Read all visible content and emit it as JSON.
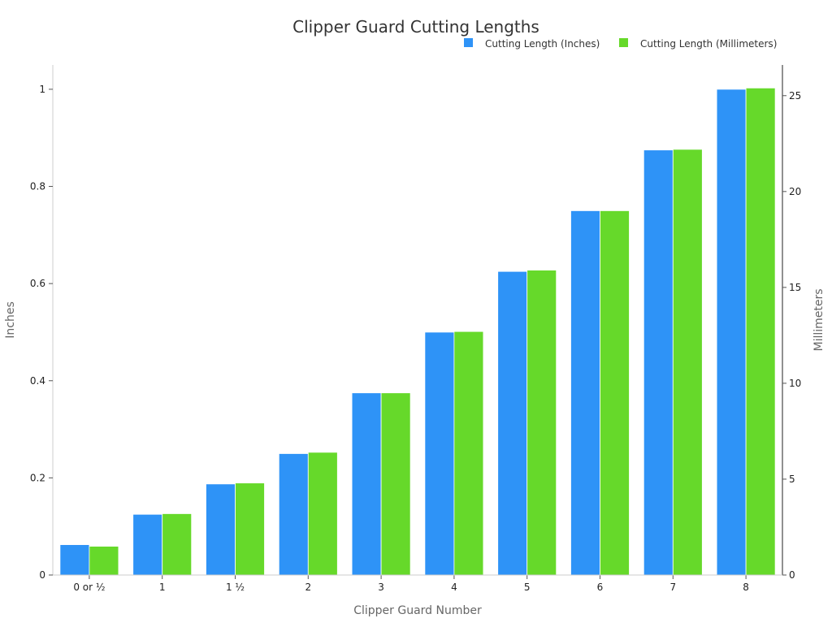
{
  "chart_data": {
    "type": "bar",
    "title": "Clipper Guard Cutting Lengths",
    "xlabel": "Clipper Guard Number",
    "ylabel": "Inches",
    "y2label": "Millimeters",
    "categories": [
      "0 or ½",
      "1",
      "1 ½",
      "2",
      "3",
      "4",
      "5",
      "6",
      "7",
      "8"
    ],
    "series": [
      {
        "name": "Cutting Length (Inches)",
        "axis": "left",
        "color": "#2e93f7",
        "values": [
          0.0625,
          0.125,
          0.1875,
          0.25,
          0.375,
          0.5,
          0.625,
          0.75,
          0.875,
          1.0
        ]
      },
      {
        "name": "Cutting Length (Millimeters)",
        "axis": "right",
        "color": "#66d92a",
        "values": [
          1.5,
          3.2,
          4.8,
          6.4,
          9.5,
          12.7,
          15.9,
          19.0,
          22.2,
          25.4
        ]
      }
    ],
    "ylim": [
      0,
      1.05
    ],
    "y2lim": [
      0,
      26.6
    ],
    "yticks": [
      "0",
      "0.2",
      "0.4",
      "0.6",
      "0.8",
      "1"
    ],
    "y2ticks": [
      "0",
      "5",
      "10",
      "15",
      "20",
      "25"
    ],
    "grid": false,
    "legend": "top-right"
  }
}
